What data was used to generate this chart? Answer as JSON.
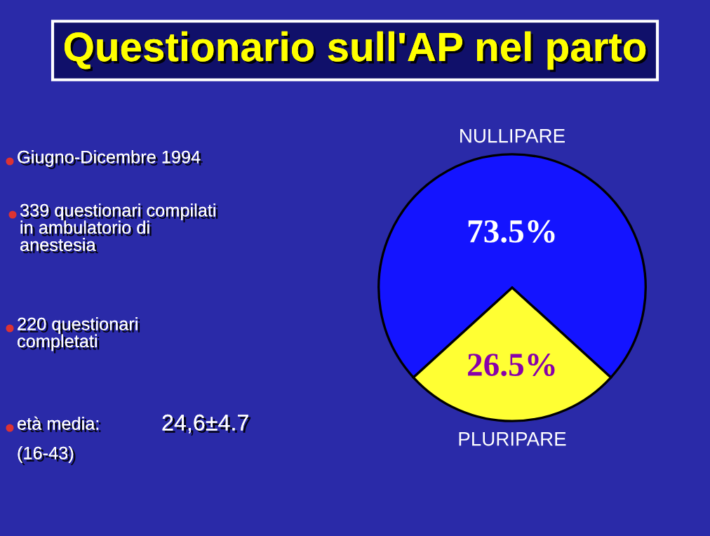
{
  "chart_data": {
    "type": "pie",
    "title": "Questionario sull'AP nel parto",
    "categories": [
      "NULLIPARE",
      "PLURIPARE"
    ],
    "values": [
      73.5,
      26.5
    ],
    "colors": [
      "#1414ff",
      "#ffff33"
    ],
    "value_labels": [
      "73.5%",
      "26.5%"
    ],
    "annotations": [
      "Giugno-Dicembre 1994",
      "339 questionari compilati\nin ambulatorio di\nanestesia",
      "220 questionari\ncompletati",
      "età media:",
      "24,6±4.7",
      "(16-43)"
    ]
  }
}
